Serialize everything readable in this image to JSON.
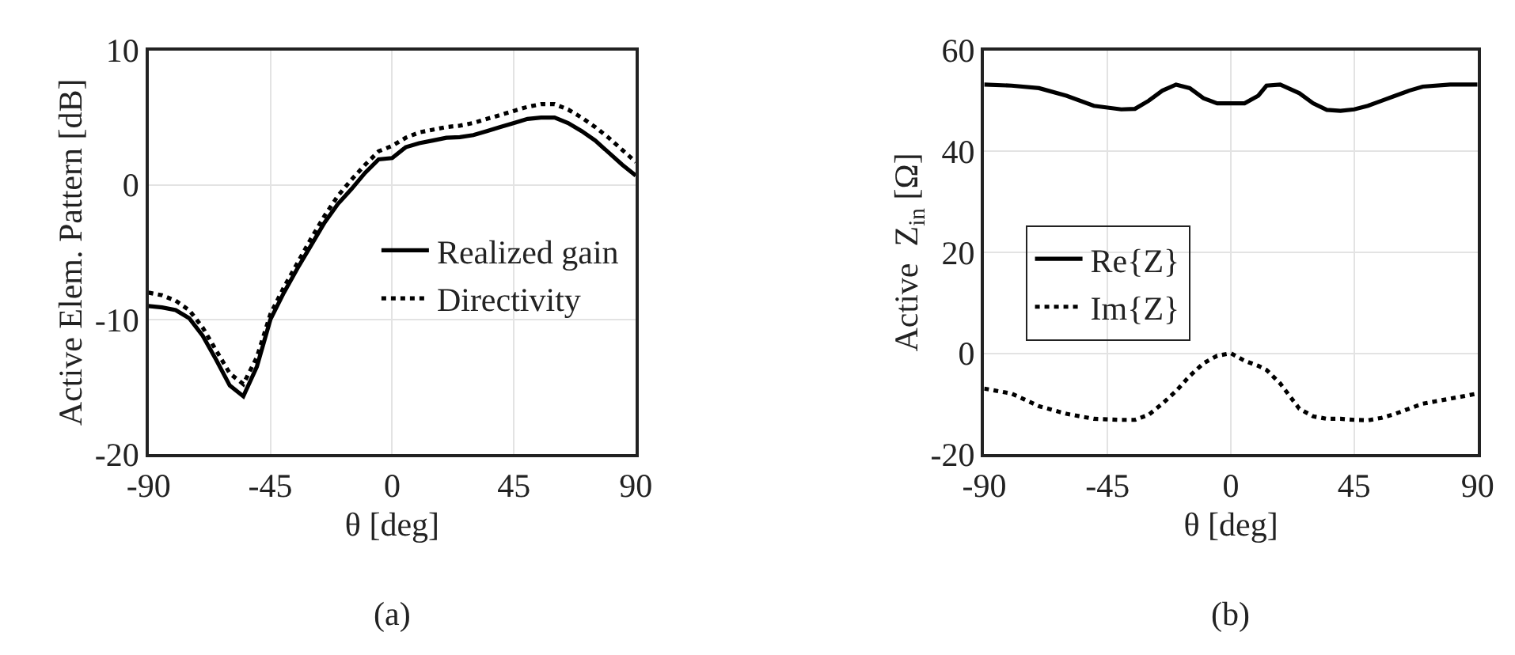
{
  "chart_data": [
    {
      "type": "line",
      "xlabel": "θ [deg]",
      "ylabel": "Active Elem. Pattern [dB]",
      "annotations": [
        "(a)"
      ],
      "x": [
        -90,
        -85,
        -80,
        -75,
        -70,
        -65,
        -60,
        -55,
        -50,
        -45,
        -40,
        -35,
        -30,
        -25,
        -20,
        -15,
        -10,
        -5,
        0,
        5,
        10,
        15,
        20,
        25,
        30,
        35,
        40,
        45,
        50,
        55,
        60,
        65,
        70,
        75,
        80,
        85,
        90
      ],
      "series": [
        {
          "name": "Realized gain",
          "color": "#000000",
          "line_style": "solid",
          "values": [
            -9.0,
            -9.1,
            -9.3,
            -9.9,
            -11.2,
            -13.0,
            -14.9,
            -15.7,
            -13.5,
            -10.0,
            -8.0,
            -6.2,
            -4.5,
            -2.8,
            -1.4,
            -0.3,
            0.9,
            1.9,
            2.0,
            2.8,
            3.1,
            3.3,
            3.5,
            3.55,
            3.7,
            4.0,
            4.3,
            4.6,
            4.9,
            5.0,
            5.0,
            4.6,
            4.0,
            3.3,
            2.4,
            1.5,
            0.7
          ]
        },
        {
          "name": "Directivity",
          "color": "#000000",
          "line_style": "dotted",
          "values": [
            -8.0,
            -8.2,
            -8.6,
            -9.3,
            -10.6,
            -12.3,
            -14.0,
            -14.8,
            -12.8,
            -9.6,
            -7.6,
            -5.8,
            -4.0,
            -2.3,
            -0.8,
            0.4,
            1.5,
            2.5,
            2.9,
            3.5,
            3.9,
            4.1,
            4.3,
            4.4,
            4.6,
            4.9,
            5.2,
            5.5,
            5.8,
            6.0,
            6.0,
            5.6,
            5.0,
            4.3,
            3.5,
            2.6,
            1.7
          ]
        }
      ],
      "xlim": [
        -90,
        90
      ],
      "xticks": [
        -90,
        -45,
        0,
        45,
        90
      ],
      "ylim": [
        -20,
        10
      ],
      "yticks": [
        -20,
        -10,
        0,
        10
      ],
      "grid": true,
      "legend": "bottom right",
      "marker": "none"
    },
    {
      "type": "line",
      "xlabel": "θ [deg]",
      "ylabel": "Active  Z$_{in}$ [Ω]",
      "annotations": [
        "(b)"
      ],
      "x": [
        -90,
        -80,
        -70,
        -60,
        -50,
        -40,
        -35,
        -30,
        -25,
        -20,
        -15,
        -10,
        -5,
        0,
        5,
        10,
        13,
        18,
        25,
        30,
        35,
        40,
        45,
        50,
        55,
        60,
        65,
        70,
        80,
        90
      ],
      "series": [
        {
          "name": "Re{Z}",
          "color": "#000000",
          "line_style": "solid",
          "values": [
            53.2,
            53,
            52.5,
            51,
            49,
            48.3,
            48.4,
            50,
            52,
            53.2,
            52.5,
            50.5,
            49.5,
            49.5,
            49.5,
            51,
            53,
            53.2,
            51.5,
            49.5,
            48.2,
            48,
            48.3,
            49,
            50,
            51,
            52,
            52.8,
            53.2,
            53.2
          ]
        },
        {
          "name": "Im{Z}",
          "color": "#000000",
          "line_style": "dotted",
          "values": [
            -7,
            -8,
            -10.5,
            -12,
            -13,
            -13.2,
            -13.2,
            -12.2,
            -10,
            -7.5,
            -4.5,
            -2,
            -0.5,
            0,
            -1.5,
            -2.5,
            -3.3,
            -6,
            -11,
            -12.5,
            -13,
            -13,
            -13.2,
            -13.3,
            -12.8,
            -12,
            -11,
            -10,
            -9,
            -8
          ]
        }
      ],
      "xlim": [
        -90,
        90
      ],
      "xticks": [
        -90,
        -45,
        0,
        45,
        90
      ],
      "ylim": [
        -20,
        60
      ],
      "yticks": [
        -20,
        0,
        20,
        40,
        60
      ],
      "grid": true,
      "legend": "left",
      "marker": "none"
    }
  ]
}
